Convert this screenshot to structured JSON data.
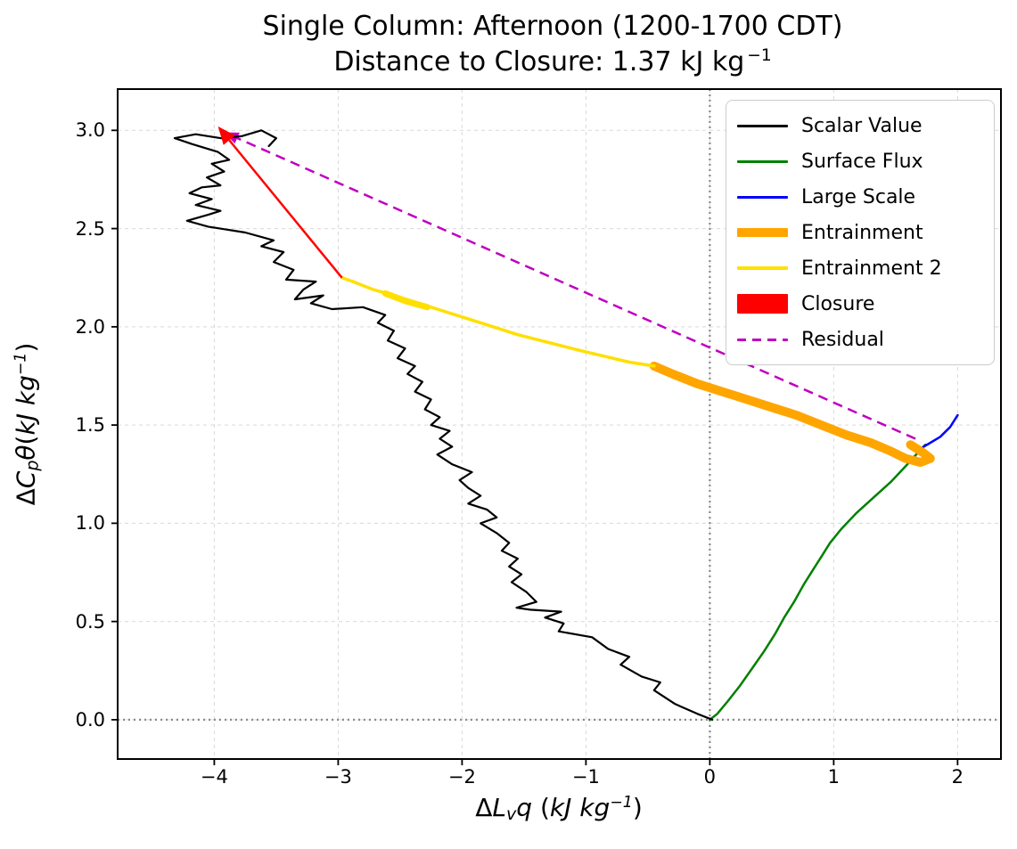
{
  "title": {
    "line1": "Single Column: Afternoon (1200-1700 CDT)",
    "line2_text": "Distance to Closure: 1.37 kJ kg",
    "line2_sup": "−1"
  },
  "axes": {
    "xlim": [
      -4.78,
      2.35
    ],
    "ylim": [
      -0.2,
      3.21
    ],
    "x_ticks": [
      -4,
      -3,
      -2,
      -1,
      0,
      1,
      2
    ],
    "x_tick_labels": [
      "−4",
      "−3",
      "−2",
      "−1",
      "0",
      "1",
      "2"
    ],
    "y_ticks": [
      0,
      0.5,
      1,
      1.5,
      2,
      2.5,
      3
    ],
    "y_tick_labels": [
      "0.0",
      "0.5",
      "1.0",
      "1.5",
      "2.0",
      "2.5",
      "3.0"
    ],
    "xlabel_parts": {
      "delta": "Δ",
      "var1": "L",
      "sub": "v",
      "var2": "q",
      "space": " ",
      "unit_open": "(",
      "unit": "kJ kg",
      "sup": "−1",
      "unit_close": ")"
    },
    "ylabel_parts": {
      "delta": "Δ",
      "var1": "C",
      "sub": "p",
      "var2": "θ",
      "unit_open": "(",
      "unit": "kJ kg",
      "sup": "−1",
      "unit_close": ")"
    },
    "grid": true
  },
  "colors": {
    "background": "#ffffff",
    "grid": "#d9d9d9",
    "zero": "#8a8a8a",
    "border": "#000000",
    "scalar": "#000000",
    "surface_flux": "#008000",
    "large_scale": "#0000ff",
    "entrainment": "#ffa500",
    "entrainment2": "#ffdf00",
    "closure": "#ff0000",
    "residual": "#bf00bf"
  },
  "legend": {
    "items": [
      {
        "label": "Scalar Value",
        "color": "#000000",
        "style": "line",
        "lw": 3
      },
      {
        "label": "Surface Flux",
        "color": "#008000",
        "style": "line",
        "lw": 3
      },
      {
        "label": "Large Scale",
        "color": "#0000ff",
        "style": "line",
        "lw": 3
      },
      {
        "label": "Entrainment",
        "color": "#ffa500",
        "style": "line",
        "lw": 10
      },
      {
        "label": "Entrainment 2",
        "color": "#ffdf00",
        "style": "line",
        "lw": 4
      },
      {
        "label": "Closure",
        "color": "#ff0000",
        "style": "patch",
        "lw": 22
      },
      {
        "label": "Residual",
        "color": "#bf00bf",
        "style": "dashed",
        "lw": 3
      }
    ]
  },
  "chart_data": {
    "type": "line",
    "title": "Single Column: Afternoon (1200-1700 CDT) — Distance to Closure: 1.37 kJ kg⁻¹",
    "xlabel": "ΔL_vq (kJ kg⁻¹)",
    "ylabel": "ΔC_pθ (kJ kg⁻¹)",
    "xlim": [
      -4.78,
      2.35
    ],
    "ylim": [
      -0.2,
      3.21
    ],
    "grid": true,
    "legend_position": "upper right",
    "vline_x": 0,
    "hline_y": 0,
    "distance_to_closure_kj_per_kg": 1.37,
    "arrows": [
      {
        "name": "residual",
        "label": "Residual",
        "color": "#bf00bf",
        "lw": 2.5,
        "dash": "11 7",
        "from": [
          1.66,
          1.43
        ],
        "to": [
          -3.92,
          2.99
        ],
        "head": 16,
        "layer": "under"
      },
      {
        "name": "closure",
        "label": "Closure",
        "color": "#ff0000",
        "lw": 2.5,
        "dash": null,
        "from": [
          -2.97,
          2.25
        ],
        "to": [
          -3.97,
          3.02
        ],
        "head": 20,
        "layer": "over"
      }
    ],
    "series": [
      {
        "name": "Surface Flux",
        "color": "#008000",
        "lw": 2.5,
        "points": [
          [
            0,
            0
          ],
          [
            0.06,
            0.03
          ],
          [
            0.14,
            0.09
          ],
          [
            0.24,
            0.17
          ],
          [
            0.34,
            0.26
          ],
          [
            0.44,
            0.35
          ],
          [
            0.53,
            0.44
          ],
          [
            0.6,
            0.52
          ],
          [
            0.68,
            0.6
          ],
          [
            0.76,
            0.69
          ],
          [
            0.84,
            0.77
          ],
          [
            0.9,
            0.83
          ],
          [
            0.97,
            0.9
          ],
          [
            1.06,
            0.97
          ],
          [
            1.18,
            1.05
          ],
          [
            1.32,
            1.13
          ],
          [
            1.46,
            1.21
          ],
          [
            1.58,
            1.29
          ],
          [
            1.68,
            1.36
          ],
          [
            1.74,
            1.4
          ]
        ]
      },
      {
        "name": "Large Scale",
        "color": "#0000ff",
        "lw": 2.5,
        "points": [
          [
            1.7,
            1.38
          ],
          [
            1.78,
            1.41
          ],
          [
            1.86,
            1.44
          ],
          [
            1.94,
            1.49
          ],
          [
            2.0,
            1.55
          ]
        ]
      },
      {
        "name": "Entrainment",
        "color": "#ffa500",
        "lw": 10,
        "points": [
          [
            1.62,
            1.4
          ],
          [
            1.72,
            1.36
          ],
          [
            1.78,
            1.33
          ],
          [
            1.7,
            1.31
          ],
          [
            1.58,
            1.33
          ],
          [
            1.45,
            1.37
          ],
          [
            1.3,
            1.41
          ],
          [
            1.1,
            1.45
          ],
          [
            0.9,
            1.5
          ],
          [
            0.7,
            1.55
          ],
          [
            0.5,
            1.59
          ],
          [
            0.3,
            1.63
          ],
          [
            0.1,
            1.67
          ],
          [
            -0.1,
            1.71
          ],
          [
            -0.3,
            1.76
          ],
          [
            -0.45,
            1.8
          ]
        ]
      },
      {
        "name": "Entrainment 2",
        "color": "#ffdf00",
        "lw": 3.5,
        "points": [
          [
            -0.45,
            1.8
          ],
          [
            -0.65,
            1.82
          ],
          [
            -0.85,
            1.85
          ],
          [
            -1.05,
            1.88
          ],
          [
            -1.3,
            1.92
          ],
          [
            -1.55,
            1.96
          ],
          [
            -1.8,
            2.01
          ],
          [
            -2.05,
            2.06
          ],
          [
            -2.3,
            2.11
          ],
          [
            -2.55,
            2.16
          ],
          [
            -2.72,
            2.19
          ],
          [
            -2.88,
            2.23
          ],
          [
            -2.97,
            2.25
          ]
        ]
      },
      {
        "name": "Entrainment 2 bold segment",
        "color": "#ffdf00",
        "lw": 7,
        "points": [
          [
            -2.28,
            2.1
          ],
          [
            -2.45,
            2.13
          ],
          [
            -2.62,
            2.17
          ]
        ]
      },
      {
        "name": "Scalar Value",
        "color": "#000000",
        "lw": 2.2,
        "points": [
          [
            0.02,
            0
          ],
          [
            -0.1,
            0.03
          ],
          [
            -0.28,
            0.08
          ],
          [
            -0.45,
            0.15
          ],
          [
            -0.4,
            0.19
          ],
          [
            -0.55,
            0.22
          ],
          [
            -0.72,
            0.28
          ],
          [
            -0.65,
            0.32
          ],
          [
            -0.82,
            0.36
          ],
          [
            -0.95,
            0.42
          ],
          [
            -1.22,
            0.45
          ],
          [
            -1.18,
            0.49
          ],
          [
            -1.33,
            0.52
          ],
          [
            -1.2,
            0.55
          ],
          [
            -1.45,
            0.56
          ],
          [
            -1.56,
            0.57
          ],
          [
            -1.4,
            0.6
          ],
          [
            -1.48,
            0.65
          ],
          [
            -1.6,
            0.7
          ],
          [
            -1.52,
            0.74
          ],
          [
            -1.62,
            0.78
          ],
          [
            -1.55,
            0.82
          ],
          [
            -1.68,
            0.86
          ],
          [
            -1.62,
            0.9
          ],
          [
            -1.72,
            0.95
          ],
          [
            -1.85,
            1.0
          ],
          [
            -1.72,
            1.03
          ],
          [
            -1.8,
            1.07
          ],
          [
            -1.95,
            1.1
          ],
          [
            -1.85,
            1.14
          ],
          [
            -1.95,
            1.18
          ],
          [
            -2.02,
            1.22
          ],
          [
            -1.92,
            1.26
          ],
          [
            -2.08,
            1.3
          ],
          [
            -2.2,
            1.35
          ],
          [
            -2.08,
            1.39
          ],
          [
            -2.18,
            1.43
          ],
          [
            -2.1,
            1.47
          ],
          [
            -2.25,
            1.5
          ],
          [
            -2.18,
            1.54
          ],
          [
            -2.3,
            1.58
          ],
          [
            -2.25,
            1.63
          ],
          [
            -2.38,
            1.67
          ],
          [
            -2.32,
            1.72
          ],
          [
            -2.44,
            1.76
          ],
          [
            -2.38,
            1.8
          ],
          [
            -2.52,
            1.84
          ],
          [
            -2.46,
            1.89
          ],
          [
            -2.6,
            1.93
          ],
          [
            -2.55,
            1.98
          ],
          [
            -2.68,
            2.02
          ],
          [
            -2.62,
            2.06
          ],
          [
            -2.8,
            2.1
          ],
          [
            -3.05,
            2.09
          ],
          [
            -3.22,
            2.12
          ],
          [
            -3.12,
            2.16
          ],
          [
            -3.35,
            2.14
          ],
          [
            -3.28,
            2.19
          ],
          [
            -3.18,
            2.23
          ],
          [
            -3.42,
            2.24
          ],
          [
            -3.36,
            2.29
          ],
          [
            -3.52,
            2.33
          ],
          [
            -3.44,
            2.38
          ],
          [
            -3.62,
            2.41
          ],
          [
            -3.52,
            2.44
          ],
          [
            -3.75,
            2.48
          ],
          [
            -4.05,
            2.51
          ],
          [
            -4.22,
            2.54
          ],
          [
            -4.05,
            2.57
          ],
          [
            -3.95,
            2.59
          ],
          [
            -4.15,
            2.62
          ],
          [
            -4.02,
            2.65
          ],
          [
            -4.2,
            2.68
          ],
          [
            -4.1,
            2.71
          ],
          [
            -3.95,
            2.72
          ],
          [
            -4.06,
            2.76
          ],
          [
            -3.92,
            2.79
          ],
          [
            -4.02,
            2.83
          ],
          [
            -3.88,
            2.85
          ],
          [
            -3.97,
            2.89
          ],
          [
            -4.18,
            2.93
          ],
          [
            -4.32,
            2.96
          ],
          [
            -4.15,
            2.98
          ],
          [
            -3.95,
            2.96
          ],
          [
            -3.78,
            2.97
          ],
          [
            -3.62,
            3.0
          ],
          [
            -3.5,
            2.96
          ],
          [
            -3.56,
            2.92
          ]
        ]
      }
    ]
  }
}
